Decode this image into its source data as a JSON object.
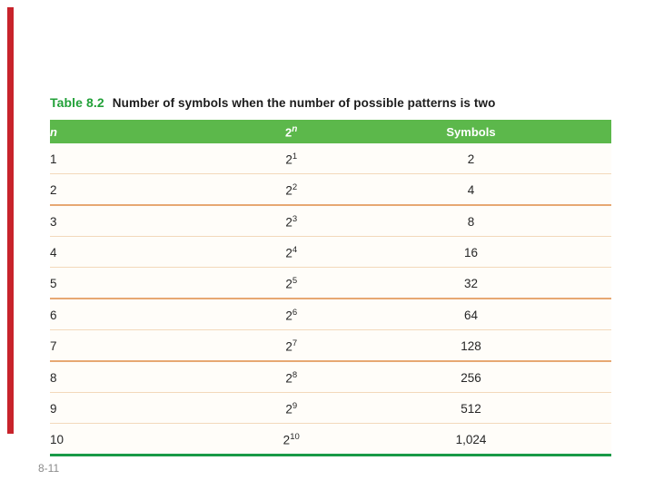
{
  "colors": {
    "accent_red": "#c8232b",
    "title_green": "#21a038",
    "header_green": "#5cb84b",
    "row_line_light": "#f3d9bb",
    "row_line_strong": "#e7a873",
    "table_bottom_green": "#189a47"
  },
  "title": {
    "table_label": "Table 8.2",
    "caption": "Number of symbols when the number of possible patterns is two"
  },
  "table": {
    "columns": [
      {
        "label": "n"
      },
      {
        "label": "2",
        "sup": "n"
      },
      {
        "label": "Symbols"
      }
    ],
    "rows": [
      {
        "n": "1",
        "base": "2",
        "exp": "1",
        "symbols": "2"
      },
      {
        "n": "2",
        "base": "2",
        "exp": "2",
        "symbols": "4"
      },
      {
        "n": "3",
        "base": "2",
        "exp": "3",
        "symbols": "8"
      },
      {
        "n": "4",
        "base": "2",
        "exp": "4",
        "symbols": "16"
      },
      {
        "n": "5",
        "base": "2",
        "exp": "5",
        "symbols": "32"
      },
      {
        "n": "6",
        "base": "2",
        "exp": "6",
        "symbols": "64"
      },
      {
        "n": "7",
        "base": "2",
        "exp": "7",
        "symbols": "128"
      },
      {
        "n": "8",
        "base": "2",
        "exp": "8",
        "symbols": "256"
      },
      {
        "n": "9",
        "base": "2",
        "exp": "9",
        "symbols": "512"
      },
      {
        "n": "10",
        "base": "2",
        "exp": "10",
        "symbols": "1,024"
      }
    ]
  },
  "footer": {
    "page_label": "8-11"
  }
}
